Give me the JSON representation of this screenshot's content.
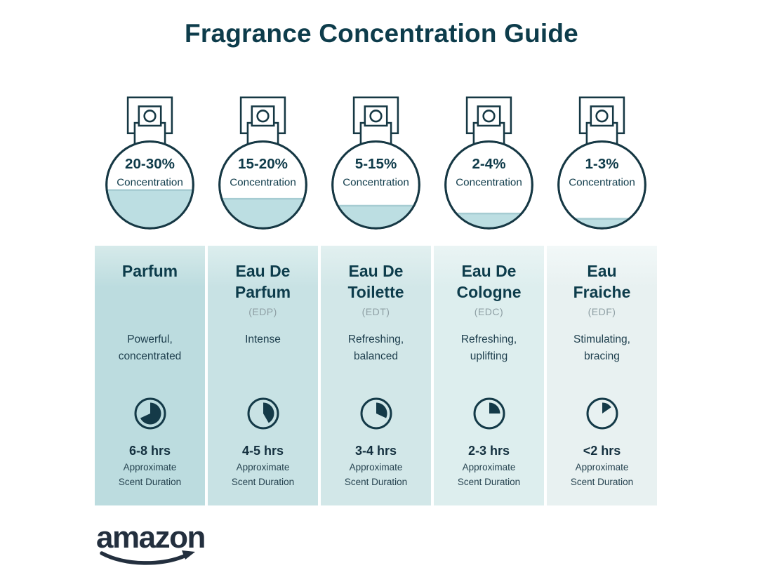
{
  "title": "Fragrance Concentration Guide",
  "concentration_label": "Concentration",
  "duration_label": "Approximate\nScent Duration",
  "logo": {
    "text": "amazon"
  },
  "colors": {
    "title_text": "#0d3c4b",
    "outline": "#163844",
    "liquid": "#bcdee2",
    "abbr_gray": "#8e9fa4",
    "logo_navy": "#232f3e"
  },
  "column_tints_top": [
    "#d6eaea",
    "#dceeee",
    "#e2f0f0",
    "#eaf4f4",
    "#f2f8f8"
  ],
  "column_tints": [
    "#bcdcdf",
    "#c8e2e4",
    "#d2e7e8",
    "#ddeeee",
    "#e8f1f1"
  ],
  "columns": [
    {
      "concentration": "20-30%",
      "fill_percent": 45,
      "name": "Parfum",
      "abbr": "",
      "description": "Powerful,\nconcentrated",
      "clock_degrees": 245,
      "duration": "6-8 hrs"
    },
    {
      "concentration": "15-20%",
      "fill_percent": 35,
      "name": "Eau De\nParfum",
      "abbr": "(EDP)",
      "description": "Intense",
      "clock_degrees": 150,
      "duration": "4-5 hrs"
    },
    {
      "concentration": "5-15%",
      "fill_percent": 27,
      "name": "Eau De\nToilette",
      "abbr": "(EDT)",
      "description": "Refreshing,\nbalanced",
      "clock_degrees": 115,
      "duration": "3-4 hrs"
    },
    {
      "concentration": "2-4%",
      "fill_percent": 18,
      "name": "Eau De\nCologne",
      "abbr": "(EDC)",
      "description": "Refreshing,\nuplifting",
      "clock_degrees": 90,
      "duration": "2-3 hrs"
    },
    {
      "concentration": "1-3%",
      "fill_percent": 12,
      "name": "Eau\nFraiche",
      "abbr": "(EDF)",
      "description": "Stimulating,\nbracing",
      "clock_degrees": 55,
      "duration": "<2 hrs"
    }
  ]
}
